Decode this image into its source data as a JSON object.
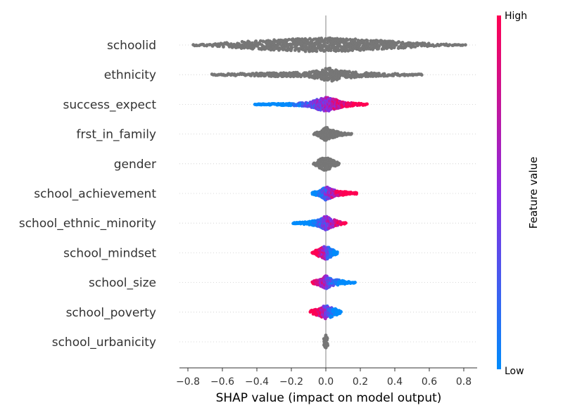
{
  "chart_data": {
    "type": "scatter",
    "subtype": "shap-beeswarm",
    "xlabel": "SHAP value (impact on model output)",
    "xlim": [
      -0.85,
      0.88
    ],
    "xticks": [
      -0.8,
      -0.6,
      -0.4,
      -0.2,
      0.0,
      0.2,
      0.4,
      0.6,
      0.8
    ],
    "xtick_labels": [
      "−0.8",
      "−0.6",
      "−0.4",
      "−0.2",
      "0.0",
      "0.2",
      "0.4",
      "0.6",
      "0.8"
    ],
    "features": [
      {
        "name": "schoolid",
        "colored": false,
        "range": [
          -0.77,
          0.81
        ],
        "profile": [
          [
            -0.77,
            0.08
          ],
          [
            -0.7,
            0.15
          ],
          [
            -0.6,
            0.28
          ],
          [
            -0.5,
            0.45
          ],
          [
            -0.4,
            0.6
          ],
          [
            -0.3,
            0.72
          ],
          [
            -0.2,
            0.85
          ],
          [
            -0.1,
            0.92
          ],
          [
            0,
            1
          ],
          [
            0.1,
            0.92
          ],
          [
            0.2,
            0.8
          ],
          [
            0.3,
            0.65
          ],
          [
            0.4,
            0.5
          ],
          [
            0.5,
            0.35
          ],
          [
            0.6,
            0.22
          ],
          [
            0.7,
            0.12
          ],
          [
            0.81,
            0.05
          ]
        ]
      },
      {
        "name": "ethnicity",
        "colored": false,
        "range": [
          -0.66,
          0.56
        ],
        "profile": [
          [
            -0.66,
            0.08
          ],
          [
            -0.55,
            0.14
          ],
          [
            -0.45,
            0.2
          ],
          [
            -0.3,
            0.25
          ],
          [
            -0.2,
            0.28
          ],
          [
            -0.1,
            0.35
          ],
          [
            -0.02,
            0.7
          ],
          [
            0,
            1
          ],
          [
            0.05,
            0.85
          ],
          [
            0.1,
            0.55
          ],
          [
            0.2,
            0.3
          ],
          [
            0.3,
            0.22
          ],
          [
            0.45,
            0.14
          ],
          [
            0.56,
            0.06
          ]
        ]
      },
      {
        "name": "success_expect",
        "colored": true,
        "range": [
          -0.41,
          0.24
        ],
        "split": -0.02,
        "profile": [
          [
            -0.41,
            0.05
          ],
          [
            -0.3,
            0.1
          ],
          [
            -0.2,
            0.16
          ],
          [
            -0.1,
            0.3
          ],
          [
            -0.05,
            0.7
          ],
          [
            0,
            1
          ],
          [
            0.05,
            0.75
          ],
          [
            0.1,
            0.35
          ],
          [
            0.18,
            0.18
          ],
          [
            0.24,
            0.06
          ]
        ]
      },
      {
        "name": "frst_in_family",
        "colored": false,
        "range": [
          -0.07,
          0.15
        ],
        "profile": [
          [
            -0.07,
            0.08
          ],
          [
            -0.03,
            0.5
          ],
          [
            0,
            1
          ],
          [
            0.03,
            0.6
          ],
          [
            0.08,
            0.25
          ],
          [
            0.15,
            0.06
          ]
        ]
      },
      {
        "name": "gender",
        "colored": false,
        "range": [
          -0.07,
          0.08
        ],
        "profile": [
          [
            -0.07,
            0.12
          ],
          [
            -0.03,
            0.7
          ],
          [
            0,
            1
          ],
          [
            0.03,
            0.6
          ],
          [
            0.08,
            0.1
          ]
        ]
      },
      {
        "name": "school_achievement",
        "colored": true,
        "range": [
          -0.08,
          0.18
        ],
        "split": 0.02,
        "profile": [
          [
            -0.08,
            0.12
          ],
          [
            -0.03,
            0.45
          ],
          [
            0,
            1
          ],
          [
            0.03,
            0.6
          ],
          [
            0.08,
            0.3
          ],
          [
            0.18,
            0.1
          ]
        ]
      },
      {
        "name": "school_ethnic_minority",
        "colored": true,
        "range": [
          -0.19,
          0.12
        ],
        "split": 0.01,
        "reverse": false,
        "profile": [
          [
            -0.19,
            0.06
          ],
          [
            -0.1,
            0.2
          ],
          [
            -0.03,
            0.55
          ],
          [
            0,
            1
          ],
          [
            0.03,
            0.6
          ],
          [
            0.08,
            0.25
          ],
          [
            0.12,
            0.08
          ]
        ]
      },
      {
        "name": "school_mindset",
        "colored": true,
        "range": [
          -0.08,
          0.07
        ],
        "split": 0.0,
        "reverse": true,
        "profile": [
          [
            -0.08,
            0.15
          ],
          [
            -0.03,
            0.6
          ],
          [
            0,
            1
          ],
          [
            0.03,
            0.6
          ],
          [
            0.07,
            0.15
          ]
        ]
      },
      {
        "name": "school_size",
        "colored": true,
        "range": [
          -0.08,
          0.17
        ],
        "split": 0.0,
        "reverse": true,
        "profile": [
          [
            -0.08,
            0.12
          ],
          [
            -0.02,
            0.6
          ],
          [
            0,
            1
          ],
          [
            0.03,
            0.5
          ],
          [
            0.1,
            0.25
          ],
          [
            0.17,
            0.06
          ]
        ]
      },
      {
        "name": "school_poverty",
        "colored": true,
        "range": [
          -0.09,
          0.09
        ],
        "split": 0.0,
        "reverse": true,
        "profile": [
          [
            -0.09,
            0.2
          ],
          [
            -0.04,
            0.5
          ],
          [
            0,
            1
          ],
          [
            0.04,
            0.6
          ],
          [
            0.09,
            0.15
          ]
        ]
      },
      {
        "name": "school_urbanicity",
        "colored": false,
        "range": [
          -0.01,
          0.01
        ],
        "profile": [
          [
            -0.01,
            0.5
          ],
          [
            0,
            1
          ],
          [
            0.01,
            0.5
          ]
        ]
      }
    ],
    "colorbar": {
      "high_label": "High",
      "low_label": "Low",
      "title": "Feature value"
    },
    "colors": {
      "high": "#ff0052",
      "mid": "#8a2be2",
      "low": "#008bfb",
      "neutral": "#777777"
    }
  }
}
